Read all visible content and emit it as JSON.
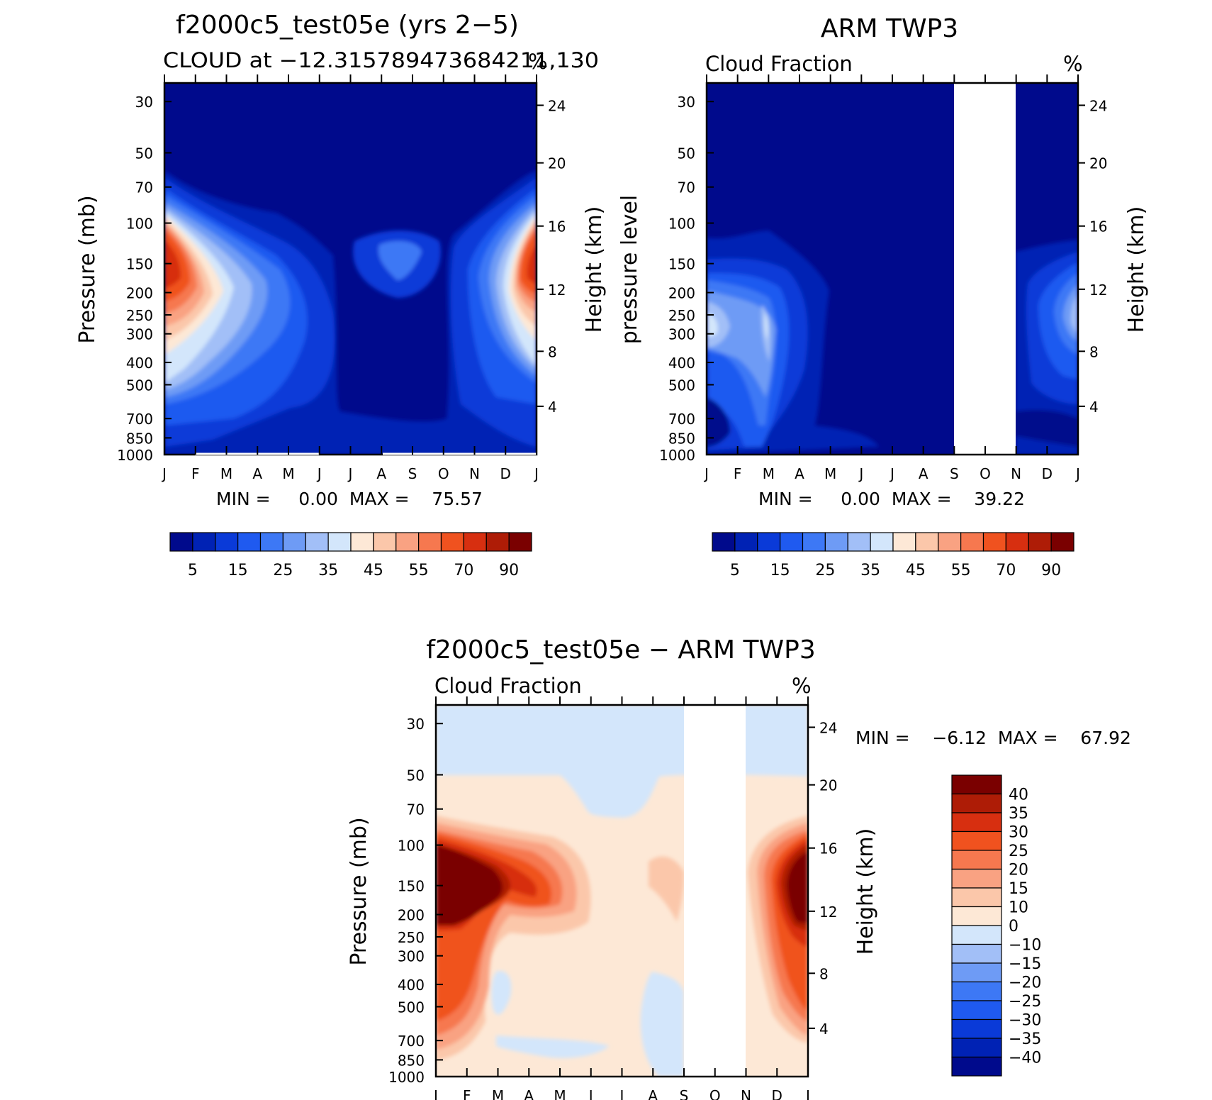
{
  "figure": {
    "background": "#ffffff"
  },
  "palette_pos": [
    "#000a8c",
    "#0022b4",
    "#0a3ad8",
    "#1f5af0",
    "#3d78f5",
    "#6e9bf5",
    "#a2bff7",
    "#d3e6fb",
    "#fde8d6",
    "#fbc7aa",
    "#f9a282",
    "#f6784f",
    "#f0521f",
    "#d72f10",
    "#ae1c06",
    "#7a0000"
  ],
  "palette_diff": [
    "#000a8c",
    "#0022b4",
    "#0a3ad8",
    "#1f5af0",
    "#3d78f5",
    "#6e9bf5",
    "#a2bff7",
    "#d3e6fb",
    "#fde8d6",
    "#fbc7aa",
    "#f9a282",
    "#f6784f",
    "#f0521f",
    "#d72f10",
    "#ae1c06",
    "#7a0000"
  ],
  "chart_data": [
    {
      "type": "heatmap",
      "title": "f2000c5_test05e (yrs 2−5)",
      "subtitle": "CLOUD at −12.315789473684211,130",
      "units": "%",
      "ylabel": "Pressure (mb)",
      "ylabel_right": "Height (km)",
      "months": [
        "J",
        "F",
        "M",
        "A",
        "M",
        "J",
        "J",
        "A",
        "S",
        "O",
        "N",
        "D",
        "J"
      ],
      "pressure_ticks": [
        "30",
        "50",
        "70",
        "100",
        "150",
        "200",
        "250",
        "300",
        "400",
        "500",
        "700",
        "850",
        "1000"
      ],
      "height_ticks": [
        "24",
        "20",
        "16",
        "12",
        "8",
        "4"
      ],
      "min_max_text": "MIN =     0.00  MAX =    75.57",
      "colorbar_labels": [
        "5",
        "15",
        "25",
        "35",
        "45",
        "55",
        "70",
        "90"
      ]
    },
    {
      "type": "heatmap",
      "title": "ARM TWP3",
      "subtitle": "Cloud Fraction",
      "units": "%",
      "ylabel": "pressure level",
      "ylabel_right": "Height (km)",
      "months": [
        "J",
        "F",
        "M",
        "A",
        "M",
        "J",
        "J",
        "A",
        "S",
        "O",
        "N",
        "D",
        "J"
      ],
      "pressure_ticks": [
        "30",
        "50",
        "70",
        "100",
        "150",
        "200",
        "250",
        "300",
        "400",
        "500",
        "700",
        "850",
        "1000"
      ],
      "height_ticks": [
        "24",
        "20",
        "16",
        "12",
        "8",
        "4"
      ],
      "min_max_text": "MIN =     0.00  MAX =    39.22",
      "missing_months": [
        "S",
        "O",
        "N"
      ],
      "colorbar_labels": [
        "5",
        "15",
        "25",
        "35",
        "45",
        "55",
        "70",
        "90"
      ]
    },
    {
      "type": "heatmap",
      "title": "f2000c5_test05e − ARM TWP3",
      "subtitle": "Cloud Fraction",
      "units": "%",
      "ylabel": "Pressure (mb)",
      "ylabel_right": "Height (km)",
      "months": [
        "J",
        "F",
        "M",
        "A",
        "M",
        "J",
        "J",
        "A",
        "S",
        "O",
        "N",
        "D",
        "J"
      ],
      "pressure_ticks": [
        "30",
        "50",
        "70",
        "100",
        "150",
        "200",
        "250",
        "300",
        "400",
        "500",
        "700",
        "850",
        "1000"
      ],
      "height_ticks": [
        "24",
        "20",
        "16",
        "12",
        "8",
        "4"
      ],
      "min_max_text": "MIN =    −6.12  MAX =    67.92",
      "missing_months": [
        "S",
        "O",
        "N"
      ],
      "colorbar_labels": [
        "40",
        "35",
        "30",
        "25",
        "20",
        "15",
        "10",
        "0",
        "−10",
        "−15",
        "−20",
        "−25",
        "−30",
        "−35",
        "−40"
      ]
    }
  ]
}
